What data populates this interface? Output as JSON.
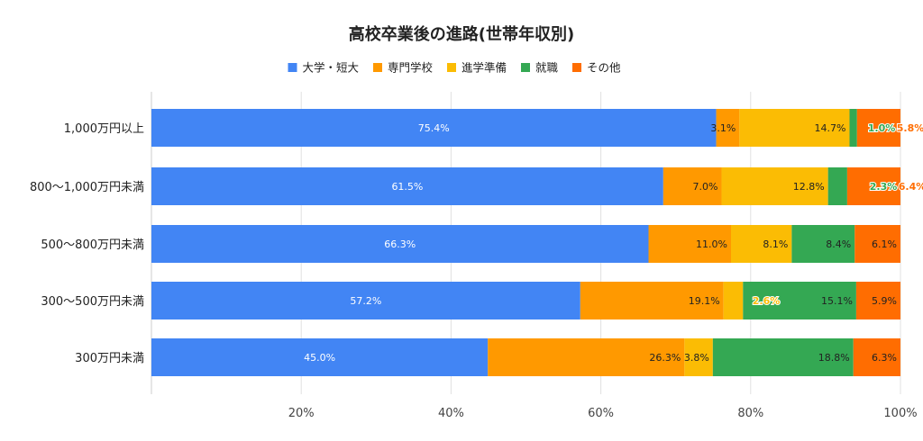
{
  "chart_data": {
    "type": "bar",
    "orientation": "horizontal",
    "stacked": "percent",
    "title": "高校卒業後の進路(世帯年収別)",
    "legend_position": "top",
    "categories": [
      "1,000万円以上",
      "800〜1,000万円未満",
      "500〜800万円未満",
      "300〜500万円未満",
      "300万円未満"
    ],
    "series": [
      {
        "name": "大学・短大",
        "color": "#4285f4",
        "values": [
          75.4,
          61.5,
          66.3,
          57.2,
          45.0
        ],
        "labels": [
          "75.4%",
          "61.5%",
          "66.3%",
          "57.2%",
          "45.0%"
        ]
      },
      {
        "name": "専門学校",
        "color": "#ff9900",
        "values": [
          3.1,
          7.0,
          11.0,
          19.1,
          26.3
        ],
        "labels": [
          "3.1%",
          "7.0%",
          "11.0%",
          "19.1%",
          "26.3%"
        ]
      },
      {
        "name": "進学準備",
        "color": "#fbbc04",
        "values": [
          14.7,
          12.8,
          8.1,
          2.6,
          3.8
        ],
        "labels": [
          "14.7%",
          "12.8%",
          "8.1%",
          "",
          "3.8%"
        ]
      },
      {
        "name": "就職",
        "color": "#34a853",
        "values": [
          1.0,
          2.3,
          8.4,
          15.1,
          18.8
        ],
        "labels": [
          "",
          "",
          "8.4%",
          "15.1%",
          "18.8%"
        ]
      },
      {
        "name": "その他",
        "color": "#ff6d01",
        "values": [
          5.8,
          6.4,
          6.1,
          5.9,
          6.3
        ],
        "labels": [
          "",
          "",
          "6.1%",
          "5.9%",
          "6.3%"
        ]
      }
    ],
    "overflow_labels": [
      {
        "row": 0,
        "series": 3,
        "text": "1.0%"
      },
      {
        "row": 0,
        "series": 4,
        "text": "5.8%"
      },
      {
        "row": 1,
        "series": 3,
        "text": "2.3%"
      },
      {
        "row": 1,
        "series": 4,
        "text": "6.4%"
      },
      {
        "row": 3,
        "series": 2,
        "text": "2.6%"
      }
    ],
    "xaxis": {
      "ticks": [
        "20%",
        "40%",
        "60%",
        "80%",
        "100%"
      ],
      "tick_values": [
        20,
        40,
        60,
        80,
        100
      ],
      "range": [
        0,
        100
      ]
    },
    "grid": true
  }
}
